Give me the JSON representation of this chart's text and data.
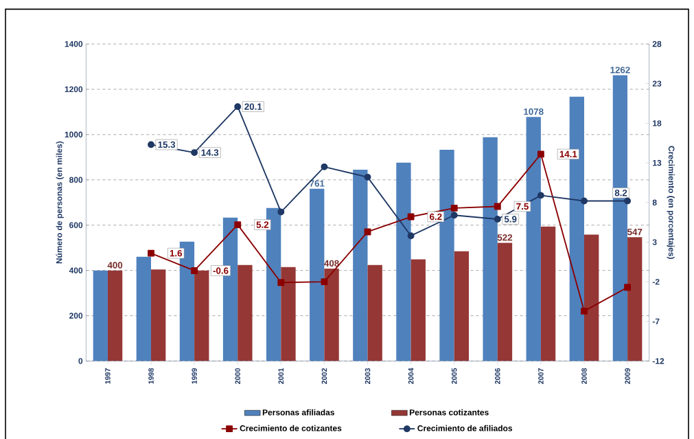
{
  "chart_data": {
    "type": "bar",
    "categories": [
      "1997",
      "1998",
      "1999",
      "2000",
      "2001",
      "2002",
      "2003",
      "2004",
      "2005",
      "2006",
      "2007",
      "2008",
      "2009"
    ],
    "series": [
      {
        "name": "Personas afiliadas",
        "color": "#4f81bd",
        "values": [
          400,
          460,
          527,
          633,
          676,
          761,
          845,
          876,
          933,
          988,
          1078,
          1167,
          1262
        ],
        "value_labels": [
          null,
          null,
          null,
          null,
          null,
          "761",
          null,
          null,
          null,
          null,
          "1078",
          null,
          "1262"
        ]
      },
      {
        "name": "Personas cotizantes",
        "color": "#953735",
        "values": [
          400,
          404,
          400,
          424,
          415,
          408,
          424,
          449,
          485,
          522,
          594,
          558,
          547
        ],
        "value_labels": [
          "400",
          null,
          null,
          null,
          null,
          "408",
          null,
          null,
          null,
          "522",
          null,
          null,
          "547"
        ]
      },
      {
        "name": "Crecimiento de cotizantes",
        "type": "line",
        "axis": "y2",
        "marker": "square",
        "color": "#8b0000",
        "values": [
          null,
          1.6,
          -0.6,
          5.2,
          -2.1,
          -2.0,
          4.3,
          6.2,
          7.3,
          7.5,
          14.1,
          -5.7,
          -2.7
        ],
        "value_labels": [
          null,
          "1.6",
          "-0.6",
          "5.2",
          null,
          null,
          null,
          "6.2",
          null,
          "7.5",
          "14.1",
          null,
          null
        ]
      },
      {
        "name": "Crecimiento de afiliados",
        "type": "line",
        "axis": "y2",
        "marker": "circle",
        "color": "#1f3864",
        "values": [
          null,
          15.3,
          14.3,
          20.1,
          6.8,
          12.5,
          11.2,
          3.8,
          6.4,
          5.9,
          8.9,
          8.2,
          8.2
        ],
        "value_labels": [
          null,
          "15.3",
          "14.3",
          "20.1",
          null,
          null,
          null,
          null,
          null,
          "5.9",
          null,
          null,
          "8.2"
        ]
      }
    ],
    "ylabel": "Número de personas (en miles)",
    "y2label": "Crecimiento (en porcentajes)",
    "ylim": [
      0,
      1400
    ],
    "yticks": [
      0,
      200,
      400,
      600,
      800,
      1000,
      1200,
      1400
    ],
    "y2lim": [
      -12,
      28
    ],
    "y2ticks": [
      -12,
      -7,
      -2,
      3,
      8,
      13,
      18,
      23,
      28
    ],
    "grid": "y",
    "legend": "bottom"
  }
}
